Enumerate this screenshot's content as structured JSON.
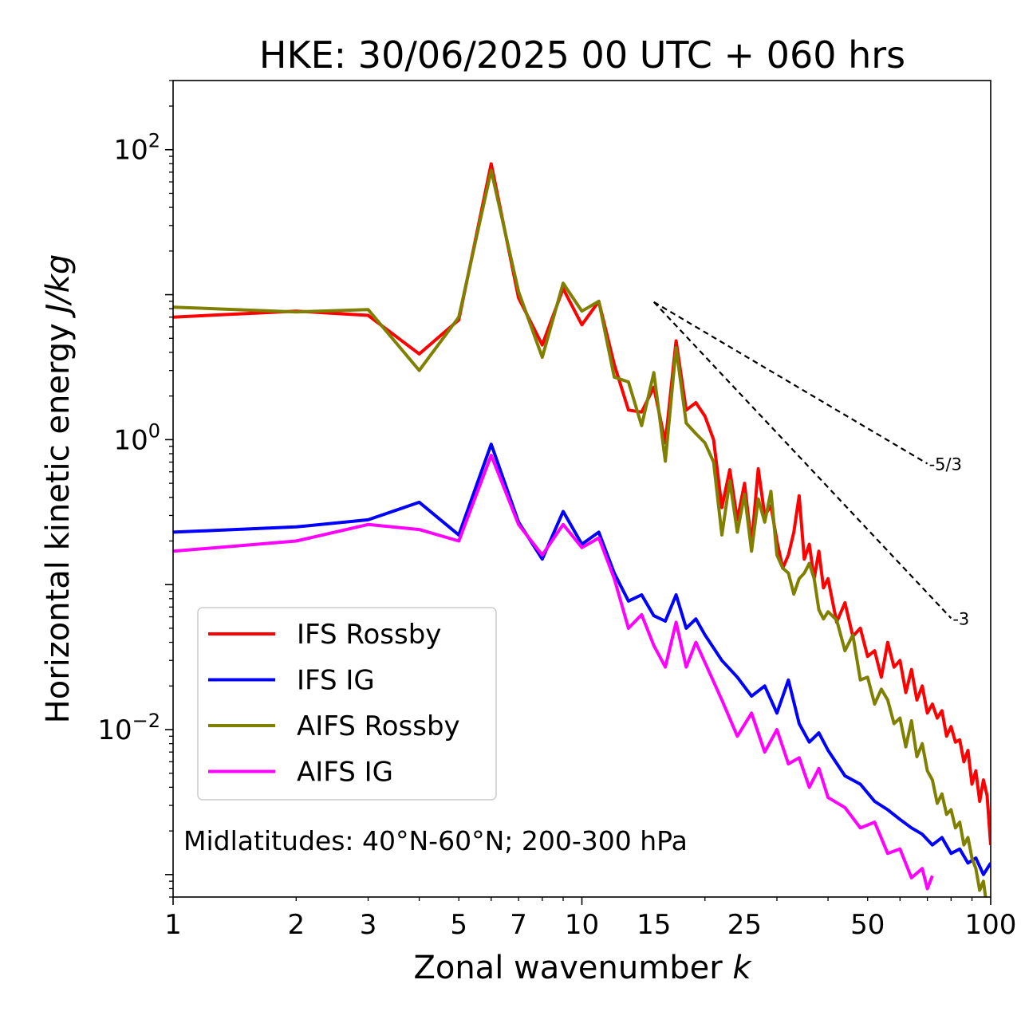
{
  "chart_data": {
    "type": "line",
    "title": "HKE: 30/06/2025 00 UTC + 060 hrs",
    "xlabel": "Zonal wavenumber",
    "xlabel_var": "k",
    "ylabel": "Horizontal kinetic energy",
    "ylabel_units": "J/kg",
    "xscale": "log",
    "yscale": "log",
    "xlim": [
      1,
      100
    ],
    "ylim": [
      0.0007,
      300
    ],
    "x_ticks": [
      1,
      2,
      3,
      5,
      7,
      10,
      15,
      25,
      50,
      100
    ],
    "x_tick_labels": [
      "1",
      "2",
      "3",
      "5",
      "7",
      "10",
      "15",
      "25",
      "50",
      "100"
    ],
    "y_ticks": [
      {
        "value": 100,
        "base": "10",
        "exp": "2"
      },
      {
        "value": 1,
        "base": "10",
        "exp": "0"
      },
      {
        "value": 0.01,
        "base": "10",
        "exp": "−2"
      }
    ],
    "legend_position": "lower-left",
    "annotation": "Midlatitudes: 40°N-60°N; 200-300 hPa",
    "reference_lines": [
      {
        "label": "-5/3",
        "slope": -1.6667,
        "x": [
          15,
          70
        ],
        "y0": 8.9
      },
      {
        "label": "-3",
        "slope": -3,
        "x": [
          15,
          80
        ],
        "y0": 8.9
      }
    ],
    "series": [
      {
        "name": "IFS Rossby",
        "color": "#ff0000",
        "x": [
          1,
          2,
          3,
          4,
          5,
          6,
          7,
          8,
          9,
          10,
          11,
          12,
          13,
          14,
          15,
          16,
          17,
          18,
          19,
          20,
          21,
          22,
          23,
          24,
          25,
          26,
          27,
          28,
          29,
          30,
          31,
          32,
          33,
          34,
          35,
          36,
          37,
          38,
          39,
          40,
          42,
          44,
          46,
          48,
          50,
          52,
          54,
          56,
          58,
          60,
          62,
          64,
          66,
          68,
          70,
          72,
          74,
          76,
          78,
          80,
          82,
          84,
          86,
          88,
          90,
          92,
          94,
          96,
          98,
          100
        ],
        "values": [
          7.0,
          7.7,
          7.2,
          3.9,
          6.7,
          80,
          9.5,
          4.5,
          11,
          6.2,
          9.0,
          3.3,
          1.6,
          1.55,
          2.3,
          0.95,
          4.8,
          1.6,
          1.8,
          1.45,
          1.0,
          0.34,
          0.62,
          0.28,
          0.5,
          0.19,
          0.63,
          0.3,
          0.35,
          0.2,
          0.13,
          0.16,
          0.23,
          0.41,
          0.15,
          0.19,
          0.11,
          0.17,
          0.095,
          0.11,
          0.055,
          0.075,
          0.044,
          0.05,
          0.032,
          0.035,
          0.023,
          0.04,
          0.027,
          0.03,
          0.018,
          0.026,
          0.016,
          0.02,
          0.013,
          0.015,
          0.012,
          0.0135,
          0.009,
          0.0105,
          0.0082,
          0.0085,
          0.006,
          0.0072,
          0.0042,
          0.0052,
          0.0032,
          0.0045,
          0.0035,
          0.0016
        ]
      },
      {
        "name": "IFS IG",
        "color": "#0000ff",
        "x": [
          1,
          2,
          3,
          4,
          5,
          6,
          7,
          8,
          9,
          10,
          11,
          12,
          13,
          14,
          15,
          16,
          17,
          18,
          19,
          20,
          22,
          24,
          26,
          28,
          30,
          32,
          34,
          36,
          38,
          40,
          44,
          48,
          52,
          56,
          60,
          64,
          68,
          72,
          76,
          80,
          84,
          88,
          92,
          96,
          100
        ],
        "values": [
          0.23,
          0.25,
          0.28,
          0.37,
          0.22,
          0.93,
          0.27,
          0.15,
          0.32,
          0.19,
          0.23,
          0.12,
          0.077,
          0.085,
          0.061,
          0.056,
          0.085,
          0.05,
          0.058,
          0.045,
          0.03,
          0.023,
          0.017,
          0.02,
          0.013,
          0.022,
          0.011,
          0.0082,
          0.0095,
          0.0072,
          0.0048,
          0.0042,
          0.0032,
          0.0028,
          0.0024,
          0.0021,
          0.0019,
          0.0016,
          0.0018,
          0.0014,
          0.0015,
          0.0012,
          0.0013,
          0.001,
          0.0012
        ]
      },
      {
        "name": "AIFS Rossby",
        "color": "#808000",
        "x": [
          1,
          2,
          3,
          4,
          5,
          6,
          7,
          8,
          9,
          10,
          11,
          12,
          13,
          14,
          15,
          16,
          17,
          18,
          19,
          20,
          21,
          22,
          23,
          24,
          25,
          26,
          27,
          28,
          29,
          30,
          31,
          32,
          33,
          34,
          35,
          36,
          37,
          38,
          39,
          40,
          42,
          44,
          46,
          48,
          50,
          52,
          54,
          56,
          58,
          60,
          62,
          64,
          66,
          68,
          70,
          72,
          74,
          76,
          78,
          80,
          82,
          84,
          86,
          88,
          90,
          92,
          94,
          96,
          98,
          100
        ],
        "values": [
          8.2,
          7.6,
          7.9,
          3.0,
          7.0,
          72,
          10.5,
          3.7,
          12,
          7.7,
          9.0,
          2.7,
          2.5,
          1.25,
          2.9,
          0.71,
          4.3,
          1.3,
          1.1,
          0.95,
          0.7,
          0.22,
          0.52,
          0.23,
          0.42,
          0.17,
          0.39,
          0.27,
          0.44,
          0.16,
          0.13,
          0.12,
          0.086,
          0.11,
          0.12,
          0.14,
          0.11,
          0.067,
          0.058,
          0.065,
          0.057,
          0.035,
          0.045,
          0.022,
          0.023,
          0.015,
          0.019,
          0.016,
          0.011,
          0.012,
          0.0076,
          0.0115,
          0.0065,
          0.008,
          0.0052,
          0.0045,
          0.0031,
          0.0036,
          0.0026,
          0.0028,
          0.0021,
          0.0023,
          0.0016,
          0.0018,
          0.0013,
          0.0011,
          0.00078,
          0.0009,
          0.00058,
          0.0005
        ]
      },
      {
        "name": "AIFS IG",
        "color": "#ff00ff",
        "x": [
          1,
          2,
          3,
          4,
          5,
          6,
          7,
          8,
          9,
          10,
          11,
          12,
          13,
          14,
          15,
          16,
          17,
          18,
          19,
          20,
          22,
          24,
          26,
          28,
          30,
          32,
          34,
          36,
          38,
          40,
          44,
          48,
          52,
          56,
          60,
          64,
          68,
          70,
          72
        ],
        "values": [
          0.17,
          0.2,
          0.26,
          0.24,
          0.2,
          0.78,
          0.26,
          0.16,
          0.26,
          0.18,
          0.21,
          0.11,
          0.05,
          0.062,
          0.038,
          0.027,
          0.055,
          0.027,
          0.04,
          0.029,
          0.016,
          0.009,
          0.013,
          0.007,
          0.01,
          0.0058,
          0.0064,
          0.004,
          0.0054,
          0.0034,
          0.0029,
          0.0021,
          0.0023,
          0.0014,
          0.0015,
          0.00095,
          0.0011,
          0.0008,
          0.00098
        ]
      }
    ]
  }
}
